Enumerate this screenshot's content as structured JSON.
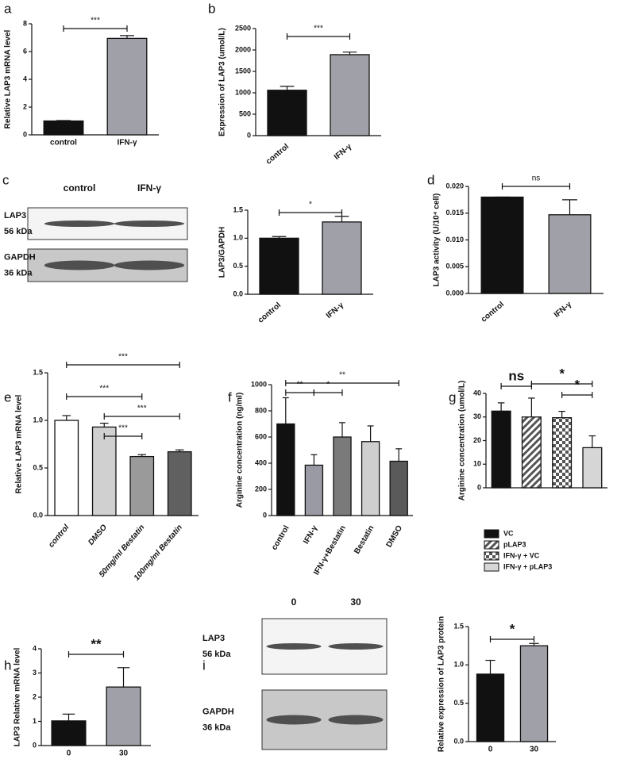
{
  "chart_data": [
    {
      "type": "bar",
      "panel": "a",
      "y_label": "Relative LAP3 mRNA level",
      "categories": [
        "control",
        "IFN-γ"
      ],
      "values": [
        1.0,
        6.95
      ],
      "errors": [
        0.03,
        0.2
      ],
      "colors": [
        "#111111",
        "#a0a0a8"
      ],
      "ylim": [
        0,
        8
      ],
      "yticks": [
        0,
        2,
        4,
        6,
        8
      ],
      "comparisons": [
        {
          "pair": [
            0,
            1
          ],
          "label": "***"
        }
      ]
    },
    {
      "type": "bar",
      "panel": "b",
      "y_label": "Expression of LAP3 (umol/L)",
      "categories": [
        "control",
        "IFN-γ"
      ],
      "values": [
        1060,
        1890
      ],
      "errors": [
        90,
        60
      ],
      "colors": [
        "#111111",
        "#a0a0a8"
      ],
      "ylim": [
        0,
        2500
      ],
      "yticks": [
        0,
        500,
        1000,
        1500,
        2000,
        2500
      ],
      "comparisons": [
        {
          "pair": [
            0,
            1
          ],
          "label": "***"
        }
      ]
    },
    {
      "type": "bar",
      "panel": "c",
      "y_label": "LAP3/GAPDH",
      "categories": [
        "control",
        "IFN-γ"
      ],
      "values": [
        1.0,
        1.29
      ],
      "errors": [
        0.03,
        0.1
      ],
      "colors": [
        "#111111",
        "#a0a0a8"
      ],
      "ylim": [
        0,
        1.5
      ],
      "yticks": [
        {
          "value": 0,
          "label": "0.0"
        },
        0.5,
        {
          "value": 1,
          "label": "1.0"
        },
        1.5
      ],
      "comparisons": [
        {
          "pair": [
            0,
            1
          ],
          "label": "*"
        }
      ],
      "blot": {
        "columns": [
          "control",
          "IFN-γ"
        ],
        "rows": [
          {
            "protein": "LAP3",
            "size": "56 kDa"
          },
          {
            "protein": "GAPDH",
            "size": "36 kDa"
          }
        ]
      }
    },
    {
      "type": "bar",
      "panel": "d",
      "y_label": "LAP3 activity (U/10⁴ cell)",
      "categories": [
        "control",
        "IFN-γ"
      ],
      "values": [
        0.018,
        0.0147
      ],
      "errors": [
        0,
        0.0028
      ],
      "colors": [
        "#111111",
        "#a0a0a8"
      ],
      "ylim": [
        0,
        0.02
      ],
      "yticks": [
        {
          "value": 0,
          "label": "0.000"
        },
        {
          "value": 0.005,
          "label": "0.005"
        },
        {
          "value": 0.01,
          "label": "0.010"
        },
        {
          "value": 0.015,
          "label": "0.015"
        },
        {
          "value": 0.02,
          "label": "0.020"
        }
      ],
      "comparisons": [
        {
          "pair": [
            0,
            1
          ],
          "label": "ns"
        }
      ]
    },
    {
      "type": "bar",
      "panel": "e",
      "y_label": "Relative LAP3 mRNA level",
      "categories": [
        "control",
        "DMSO",
        "50mg/ml Bestatin",
        "100mg/ml Bestatin"
      ],
      "values": [
        1.0,
        0.93,
        0.62,
        0.67
      ],
      "errors": [
        0.05,
        0.04,
        0.02,
        0.02
      ],
      "colors": [
        "#ffffff",
        "#d0d0d0",
        "#9a9a9a",
        "#606060"
      ],
      "ylim": [
        0,
        1.5
      ],
      "yticks": [
        {
          "value": 0,
          "label": "0.0"
        },
        0.5,
        {
          "value": 1,
          "label": "1.0"
        },
        1.5
      ],
      "comparisons": [
        {
          "pair": [
            0,
            3
          ],
          "label": "***"
        },
        {
          "pair": [
            0,
            2
          ],
          "label": "***"
        },
        {
          "pair": [
            1,
            3
          ],
          "label": "***"
        },
        {
          "pair": [
            1,
            2
          ],
          "label": "***"
        }
      ]
    },
    {
      "type": "bar",
      "panel": "f",
      "y_label": "Arginine concentration (ng/ml)",
      "categories": [
        "control",
        "IFN-γ",
        "IFN-γ+Bestatin",
        "Bestatin",
        "DMSO"
      ],
      "values": [
        700,
        385,
        600,
        565,
        415
      ],
      "errors": [
        200,
        80,
        110,
        120,
        95
      ],
      "colors": [
        "#111111",
        "#9a9aa4",
        "#7a7a7a",
        "#cfcfcf",
        "#5a5a5a"
      ],
      "ylim": [
        0,
        1000
      ],
      "yticks": [
        0,
        200,
        400,
        600,
        800,
        1000
      ],
      "comparisons": [
        {
          "pair": [
            0,
            1
          ],
          "label": "**"
        },
        {
          "pair": [
            1,
            2
          ],
          "label": "*"
        },
        {
          "pair": [
            0,
            4
          ],
          "label": "**"
        }
      ]
    },
    {
      "type": "bar",
      "panel": "g",
      "y_label": "Arginine concentration (umol/L)",
      "series": [
        {
          "name": "VC",
          "color": "#111111",
          "pattern": "solid",
          "values": [
            32.5
          ],
          "errors": [
            3.5
          ]
        },
        {
          "name": "pLAP3",
          "color": "#555555",
          "pattern": "hatch",
          "values": [
            30
          ],
          "errors": [
            8
          ]
        },
        {
          "name": "IFN-γ + VC",
          "color": "#555555",
          "pattern": "checker",
          "values": [
            29.7
          ],
          "errors": [
            2.7
          ]
        },
        {
          "name": "IFN-γ + pLAP3",
          "color": "#d6d6d6",
          "pattern": "solid",
          "values": [
            17
          ],
          "errors": [
            5
          ]
        }
      ],
      "ylim": [
        0,
        40
      ],
      "yticks": [
        0,
        10,
        20,
        30,
        40
      ],
      "comparisons": [
        {
          "pair": [
            0,
            1
          ],
          "label": "ns"
        },
        {
          "pair": [
            1,
            3
          ],
          "label": "*"
        },
        {
          "pair": [
            2,
            3
          ],
          "label": "*"
        }
      ]
    },
    {
      "type": "bar",
      "panel": "h",
      "y_label": "LAP3 Relative mRNA level",
      "categories": [
        "0",
        "30"
      ],
      "values": [
        1.02,
        2.42
      ],
      "errors": [
        0.28,
        0.8
      ],
      "colors": [
        "#111111",
        "#a0a0a8"
      ],
      "ylim": [
        0,
        4
      ],
      "yticks": [
        0,
        1,
        2,
        3,
        4
      ],
      "comparisons": [
        {
          "pair": [
            0,
            1
          ],
          "label": "**"
        }
      ]
    },
    {
      "type": "bar",
      "panel": "i",
      "y_label": "Relative expression of LAP3 protein",
      "categories": [
        "0",
        "30"
      ],
      "values": [
        0.88,
        1.25
      ],
      "errors": [
        0.18,
        0.03
      ],
      "colors": [
        "#111111",
        "#a0a0a8"
      ],
      "ylim": [
        0,
        1.5
      ],
      "yticks": [
        {
          "value": 0,
          "label": "0.0"
        },
        0.5,
        {
          "value": 1,
          "label": "1.0"
        },
        1.5
      ],
      "comparisons": [
        {
          "pair": [
            0,
            1
          ],
          "label": "*"
        }
      ],
      "blot": {
        "columns": [
          "0",
          "30"
        ],
        "rows": [
          {
            "protein": "LAP3",
            "size": "56 kDa"
          },
          {
            "protein": "GAPDH",
            "size": "36 kDa"
          }
        ]
      }
    }
  ]
}
